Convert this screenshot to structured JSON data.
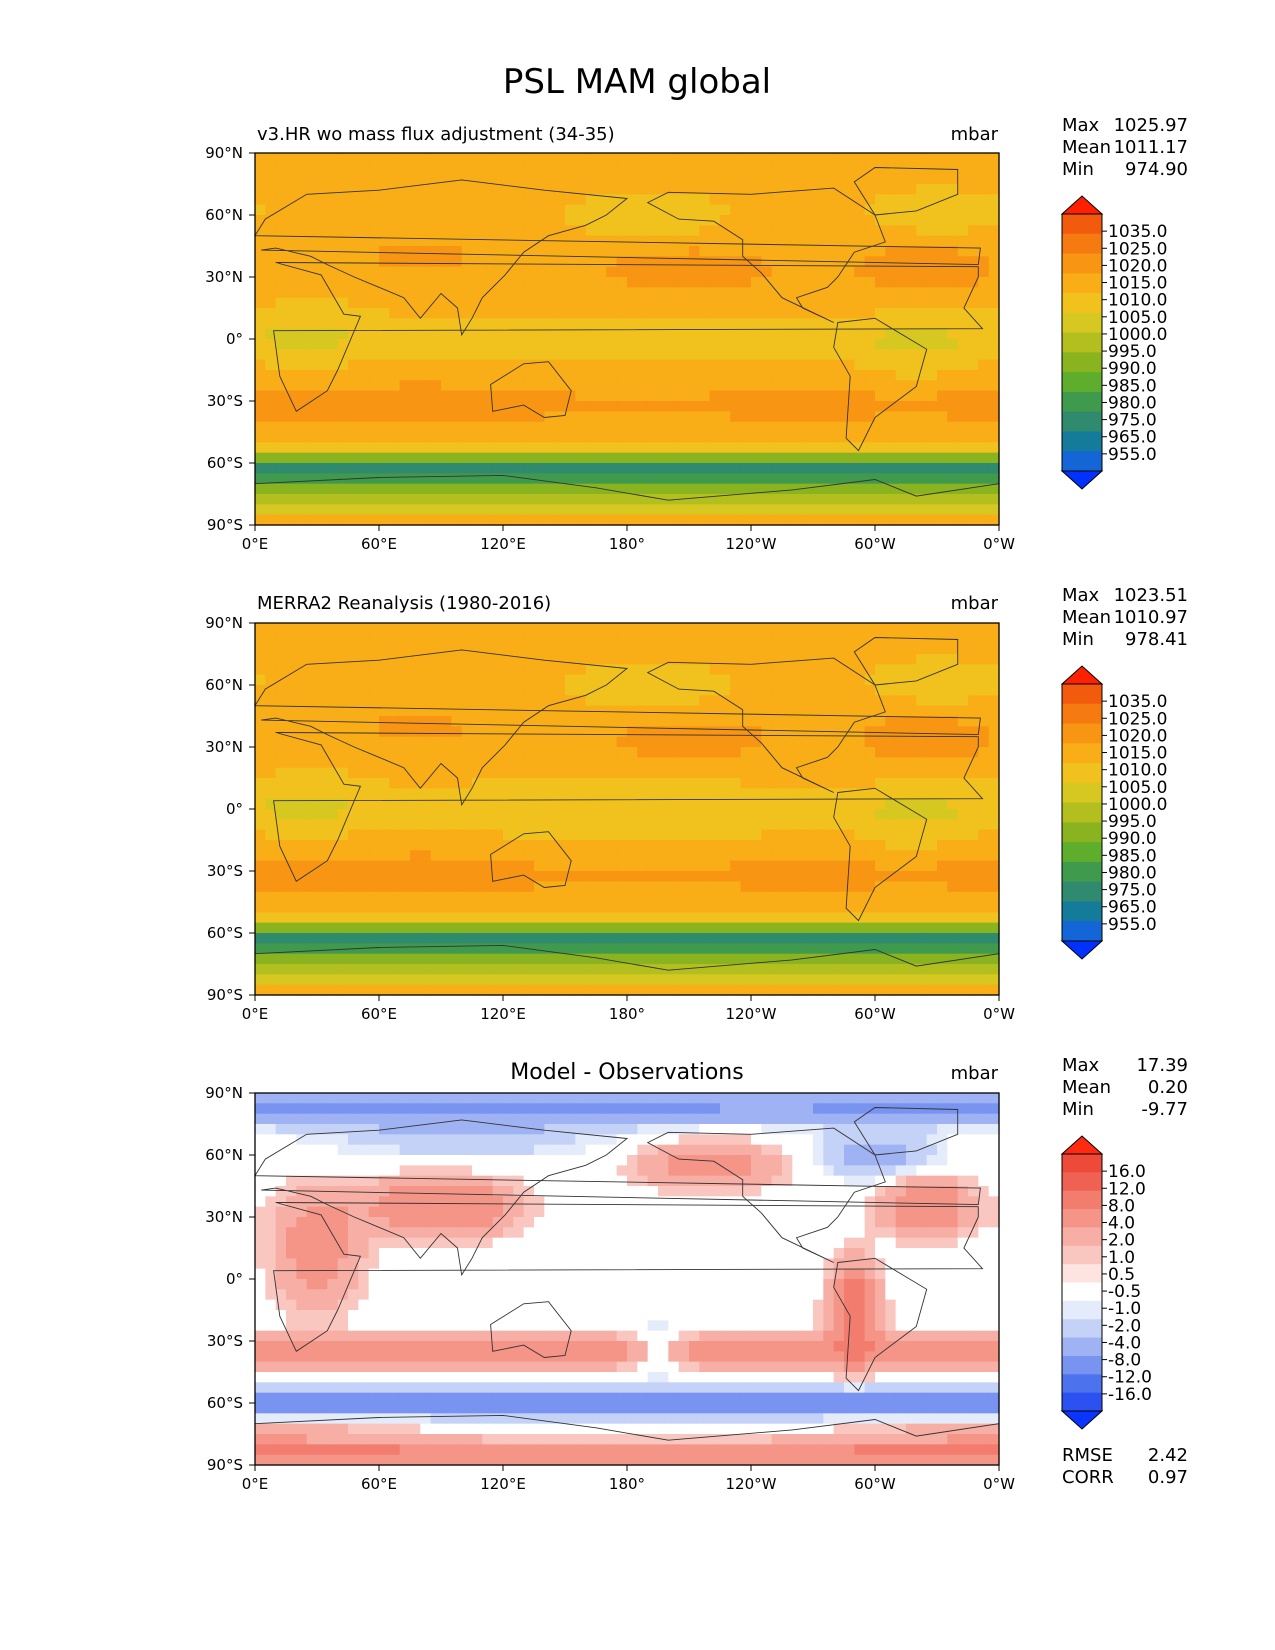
{
  "figure": {
    "title": "PSL MAM global"
  },
  "colors": {
    "full_levels": [
      "#1a3dff",
      "#1466d6",
      "#157b9a",
      "#2f8a6e",
      "#3f9a4d",
      "#5fad2c",
      "#8ab41f",
      "#b3bf1f",
      "#d6c820",
      "#f1c21d",
      "#f9ad16",
      "#f89512",
      "#f57b10",
      "#f25b0e",
      "#ff2000"
    ],
    "full_extend_high": "#ff2000",
    "full_extend_low": "#0032ff",
    "diff_levels": [
      "#0a35ff",
      "#2b52f0",
      "#4d72ee",
      "#7893f0",
      "#9fb2f3",
      "#c5d2f8",
      "#e4ebfb",
      "#ffffff",
      "#fde4e1",
      "#fac7c0",
      "#f7aea4",
      "#f49588",
      "#f27c6e",
      "#ef6153",
      "#ee4a3a",
      "#ff2a10"
    ],
    "coast": "#333333"
  },
  "chart_data": [
    {
      "type": "heatmap",
      "panel": "test",
      "title": "v3.HR wo mass flux adjustment (34-35)",
      "units": "mbar",
      "variable": "PSL",
      "season": "MAM",
      "stats": [
        {
          "label": "Max",
          "value": "1025.97"
        },
        {
          "label": "Mean",
          "value": "1011.17"
        },
        {
          "label": "Min",
          "value": "974.90"
        }
      ],
      "x_ticks": [
        "0°E",
        "60°E",
        "120°E",
        "180°",
        "120°W",
        "60°W",
        "0°W"
      ],
      "y_ticks": [
        "90°N",
        "60°N",
        "30°N",
        "0°",
        "30°S",
        "60°S",
        "90°S"
      ],
      "xlim": [
        0,
        360
      ],
      "ylim": [
        -90,
        90
      ],
      "colorbar_levels": [
        "1035.0",
        "1025.0",
        "1020.0",
        "1015.0",
        "1010.0",
        "1005.0",
        "1000.0",
        "995.0",
        "990.0",
        "985.0",
        "980.0",
        "975.0",
        "965.0",
        "955.0"
      ]
    },
    {
      "type": "heatmap",
      "panel": "reference",
      "title": "MERRA2 Reanalysis (1980-2016)",
      "units": "mbar",
      "variable": "PSL",
      "season": "MAM",
      "stats": [
        {
          "label": "Max",
          "value": "1023.51"
        },
        {
          "label": "Mean",
          "value": "1010.97"
        },
        {
          "label": "Min",
          "value": "978.41"
        }
      ],
      "x_ticks": [
        "0°E",
        "60°E",
        "120°E",
        "180°",
        "120°W",
        "60°W",
        "0°W"
      ],
      "y_ticks": [
        "90°N",
        "60°N",
        "30°N",
        "0°",
        "30°S",
        "60°S",
        "90°S"
      ],
      "xlim": [
        0,
        360
      ],
      "ylim": [
        -90,
        90
      ],
      "colorbar_levels": [
        "1035.0",
        "1025.0",
        "1020.0",
        "1015.0",
        "1010.0",
        "1005.0",
        "1000.0",
        "995.0",
        "990.0",
        "985.0",
        "980.0",
        "975.0",
        "965.0",
        "955.0"
      ]
    },
    {
      "type": "heatmap",
      "panel": "difference",
      "title": "Model - Observations",
      "units": "mbar",
      "variable": "PSL",
      "season": "MAM",
      "stats": [
        {
          "label": "Max",
          "value": "17.39"
        },
        {
          "label": "Mean",
          "value": "0.20"
        },
        {
          "label": "Min",
          "value": "-9.77"
        }
      ],
      "metrics": [
        {
          "label": "RMSE",
          "value": "2.42"
        },
        {
          "label": "CORR",
          "value": "0.97"
        }
      ],
      "x_ticks": [
        "0°E",
        "60°E",
        "120°E",
        "180°",
        "120°W",
        "60°W",
        "0°W"
      ],
      "y_ticks": [
        "90°N",
        "60°N",
        "30°N",
        "0°",
        "30°S",
        "60°S",
        "90°S"
      ],
      "xlim": [
        0,
        360
      ],
      "ylim": [
        -90,
        90
      ],
      "colorbar_levels": [
        "16.0",
        "12.0",
        "8.0",
        "4.0",
        "2.0",
        "1.0",
        "0.5",
        "-0.5",
        "-1.0",
        "-2.0",
        "-4.0",
        "-8.0",
        "-12.0",
        "-16.0"
      ]
    }
  ]
}
